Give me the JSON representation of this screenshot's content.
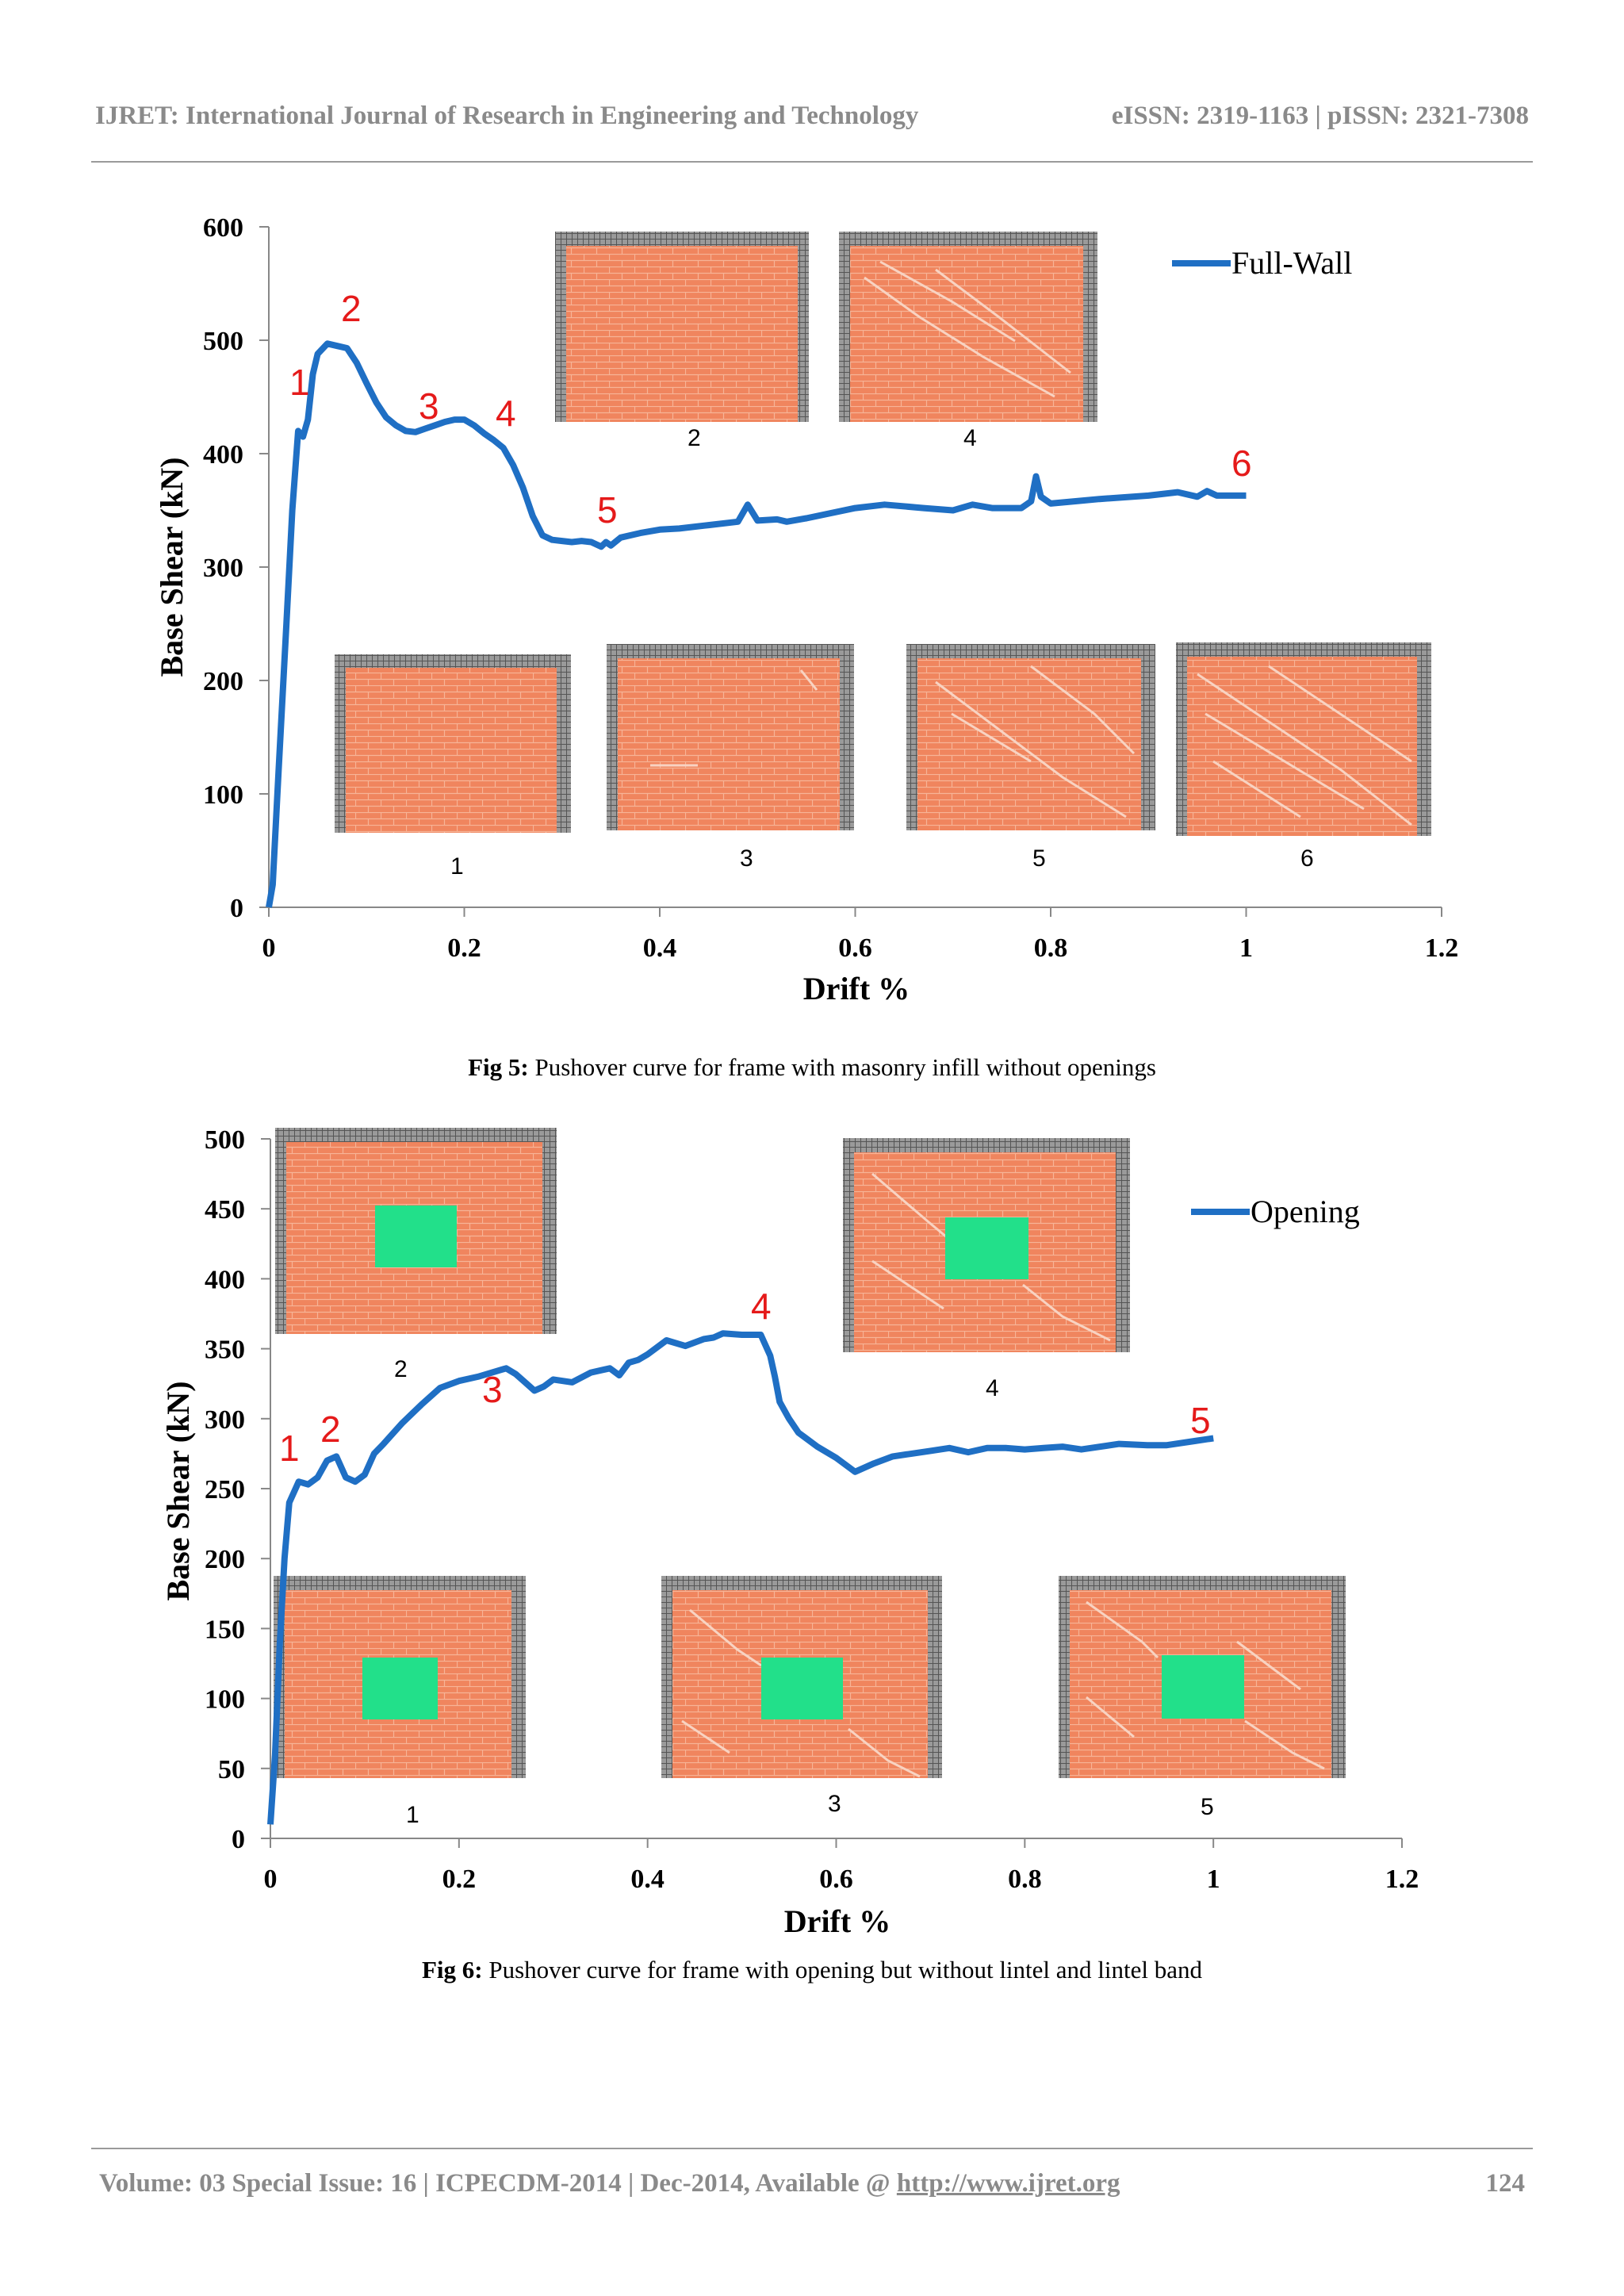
{
  "header": {
    "journal": "IJRET: International Journal of Research in Engineering and Technology",
    "issn": "eISSN: 2319-1163 | pISSN: 2321-7308"
  },
  "footer": {
    "volume_text": "Volume: 03 Special Issue: 16 | ICPECDM-2014 | Dec-2014, Available @ ",
    "link_text": "http://www.ijret.org",
    "page_number": "124"
  },
  "colors": {
    "line": "#1f6fc4",
    "brick": "#f0855e",
    "opening": "#22e08a",
    "frame": "#8a8a8a",
    "annotation": "#e51a1a"
  },
  "captions": {
    "fig5_label": "Fig 5:",
    "fig5_text": " Pushover curve for frame with masonry infill without openings",
    "fig6_label": "Fig 6:",
    "fig6_text": " Pushover curve for frame with opening but without lintel and lintel band"
  },
  "chart_data": [
    {
      "type": "line",
      "xlabel": "Drift %",
      "ylabel": "Base Shear (kN)",
      "xlim": [
        0,
        1.2
      ],
      "ylim": [
        0,
        600
      ],
      "x_ticks": [
        "0",
        "0.2",
        "0.4",
        "0.6",
        "0.8",
        "1",
        "1.2"
      ],
      "y_ticks": [
        "0",
        "100",
        "200",
        "300",
        "400",
        "500",
        "600"
      ],
      "legend": "top-right",
      "series": [
        {
          "name": "Full-Wall",
          "x": [
            0,
            0.004,
            0.01,
            0.018,
            0.024,
            0.03,
            0.035,
            0.04,
            0.045,
            0.05,
            0.06,
            0.07,
            0.08,
            0.09,
            0.1,
            0.11,
            0.12,
            0.13,
            0.14,
            0.15,
            0.16,
            0.17,
            0.18,
            0.19,
            0.2,
            0.21,
            0.22,
            0.23,
            0.24,
            0.25,
            0.26,
            0.27,
            0.28,
            0.29,
            0.3,
            0.31,
            0.32,
            0.33,
            0.34,
            0.345,
            0.35,
            0.36,
            0.38,
            0.4,
            0.42,
            0.45,
            0.48,
            0.49,
            0.5,
            0.52,
            0.53,
            0.55,
            0.6,
            0.63,
            0.67,
            0.7,
            0.72,
            0.74,
            0.77,
            0.78,
            0.785,
            0.79,
            0.8,
            0.85,
            0.9,
            0.93,
            0.95,
            0.96,
            0.97,
            1.0
          ],
          "y": [
            0,
            20,
            120,
            250,
            350,
            420,
            415,
            430,
            470,
            488,
            497,
            495,
            493,
            480,
            462,
            445,
            432,
            425,
            420,
            419,
            422,
            425,
            428,
            430,
            430,
            425,
            418,
            412,
            405,
            390,
            370,
            345,
            328,
            324,
            323,
            322,
            323,
            322,
            318,
            322,
            319,
            326,
            330,
            333,
            334,
            337,
            340,
            355,
            341,
            342,
            340,
            343,
            352,
            355,
            352,
            350,
            355,
            352,
            352,
            358,
            380,
            362,
            356,
            360,
            363,
            366,
            362,
            367,
            363,
            363
          ]
        }
      ],
      "annotations": [
        "1",
        "2",
        "3",
        "4",
        "5",
        "6"
      ],
      "stage_images": [
        "1",
        "2",
        "3",
        "4",
        "5",
        "6"
      ]
    },
    {
      "type": "line",
      "xlabel": "Drift %",
      "ylabel": "Base Shear (kN)",
      "xlim": [
        0,
        1.2
      ],
      "ylim": [
        0,
        500
      ],
      "x_ticks": [
        "0",
        "0.2",
        "0.4",
        "0.6",
        "0.8",
        "1",
        "1.2"
      ],
      "y_ticks": [
        "0",
        "50",
        "100",
        "150",
        "200",
        "250",
        "300",
        "350",
        "400",
        "450",
        "500"
      ],
      "legend": "top-right",
      "series": [
        {
          "name": "Opening",
          "x": [
            0,
            0.005,
            0.01,
            0.015,
            0.02,
            0.03,
            0.04,
            0.05,
            0.06,
            0.07,
            0.08,
            0.09,
            0.1,
            0.11,
            0.12,
            0.14,
            0.16,
            0.18,
            0.2,
            0.22,
            0.25,
            0.26,
            0.27,
            0.28,
            0.29,
            0.3,
            0.32,
            0.34,
            0.36,
            0.37,
            0.38,
            0.39,
            0.4,
            0.42,
            0.44,
            0.46,
            0.47,
            0.48,
            0.5,
            0.52,
            0.53,
            0.535,
            0.54,
            0.55,
            0.56,
            0.58,
            0.6,
            0.62,
            0.64,
            0.66,
            0.68,
            0.7,
            0.72,
            0.74,
            0.76,
            0.78,
            0.8,
            0.82,
            0.84,
            0.86,
            0.9,
            0.93,
            0.95,
            0.98,
            1.0
          ],
          "y": [
            10,
            60,
            140,
            200,
            240,
            255,
            253,
            258,
            270,
            273,
            258,
            255,
            260,
            275,
            282,
            297,
            310,
            322,
            327,
            330,
            336,
            332,
            326,
            320,
            323,
            328,
            326,
            333,
            336,
            331,
            340,
            342,
            346,
            356,
            352,
            357,
            358,
            361,
            360,
            360,
            345,
            330,
            312,
            300,
            290,
            280,
            272,
            262,
            268,
            273,
            275,
            277,
            279,
            276,
            279,
            279,
            278,
            279,
            280,
            278,
            282,
            281,
            281,
            284,
            286
          ]
        }
      ],
      "annotations": [
        "1",
        "2",
        "3",
        "4",
        "5"
      ],
      "stage_images": [
        "1",
        "2",
        "3",
        "4",
        "5"
      ]
    }
  ]
}
